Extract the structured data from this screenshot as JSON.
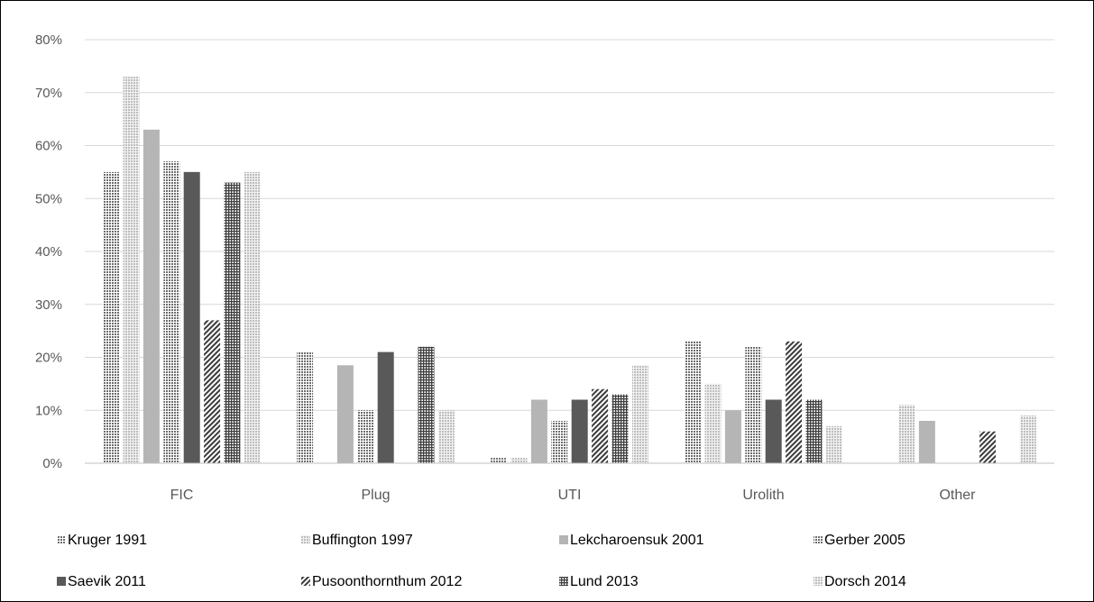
{
  "chart_data": {
    "type": "bar",
    "title": "",
    "xlabel": "",
    "ylabel": "",
    "ylim": [
      0,
      80
    ],
    "yticks": [
      "0%",
      "10%",
      "20%",
      "30%",
      "40%",
      "50%",
      "60%",
      "70%",
      "80%"
    ],
    "categories": [
      "FIC",
      "Plug",
      "UTI",
      "Urolith",
      "Other"
    ],
    "grid": "horizontal",
    "legend_position": "bottom",
    "series": [
      {
        "name": "Kruger 1991",
        "values": [
          55,
          21,
          1,
          23,
          null
        ],
        "color": "#7f7f7f",
        "pattern": "dots-dense"
      },
      {
        "name": "Buffington 1997",
        "values": [
          73,
          null,
          1,
          15,
          11
        ],
        "color": "#c0c0c0",
        "pattern": "dots-light"
      },
      {
        "name": "Lekcharoensuk 2001",
        "values": [
          63,
          18.5,
          12,
          10,
          8
        ],
        "color": "#b5b5b5",
        "pattern": "solid"
      },
      {
        "name": "Gerber 2005",
        "values": [
          57,
          10,
          8,
          22,
          null
        ],
        "color": "#8c8c8c",
        "pattern": "dots-dense"
      },
      {
        "name": "Saevik 2011",
        "values": [
          55,
          21,
          12,
          12,
          null
        ],
        "color": "#595959",
        "pattern": "solid"
      },
      {
        "name": "Pusoonthornthum 2012",
        "values": [
          27,
          null,
          14,
          23,
          6
        ],
        "color": "#3f3f3f",
        "pattern": "diagonal"
      },
      {
        "name": "Lund 2013",
        "values": [
          53,
          22,
          13,
          12,
          null
        ],
        "color": "#4a4a4a",
        "pattern": "grid"
      },
      {
        "name": "Dorsch 2014",
        "values": [
          55,
          10,
          18.5,
          7,
          9
        ],
        "color": "#d4d4d4",
        "pattern": "dots-light"
      }
    ]
  }
}
